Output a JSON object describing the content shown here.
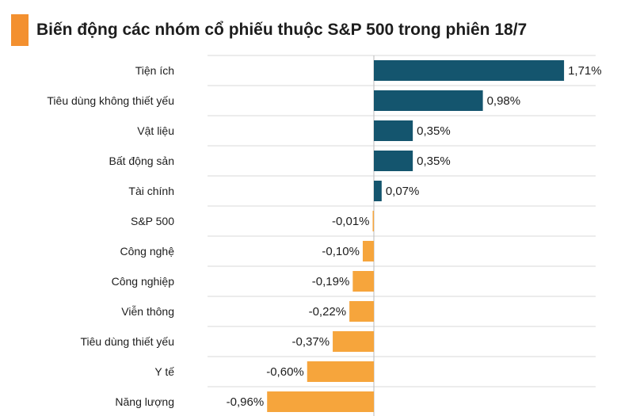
{
  "title": "Biến động các nhóm cổ phiếu thuộc S&P 500 trong phiên 18/7",
  "colors": {
    "accent": "#f3902f",
    "positive": "#14556e",
    "negative": "#f6a53c",
    "grid": "#d9d9d9",
    "axis": "#bbbbbb"
  },
  "chart_data": {
    "type": "bar",
    "orientation": "horizontal",
    "title": "Biến động các nhóm cổ phiếu thuộc S&P 500 trong phiên 18/7",
    "categories": [
      "Tiện ích",
      "Tiêu dùng không thiết yếu",
      "Vật liệu",
      "Bất động sản",
      "Tài chính",
      "S&P 500",
      "Công nghệ",
      "Công nghiệp",
      "Viễn thông",
      "Tiêu dùng thiết yếu",
      "Y tế",
      "Năng lượng"
    ],
    "values": [
      1.71,
      0.98,
      0.35,
      0.35,
      0.07,
      -0.01,
      -0.1,
      -0.19,
      -0.22,
      -0.37,
      -0.6,
      -0.96
    ],
    "labels": [
      "1,71%",
      "0,98%",
      "0,35%",
      "0,35%",
      "0,07%",
      "-0,01%",
      "-0,10%",
      "-0,19%",
      "-0,22%",
      "-0,37%",
      "-0,60%",
      "-0,96%"
    ],
    "xlabel": "",
    "ylabel": "",
    "grid": true
  }
}
